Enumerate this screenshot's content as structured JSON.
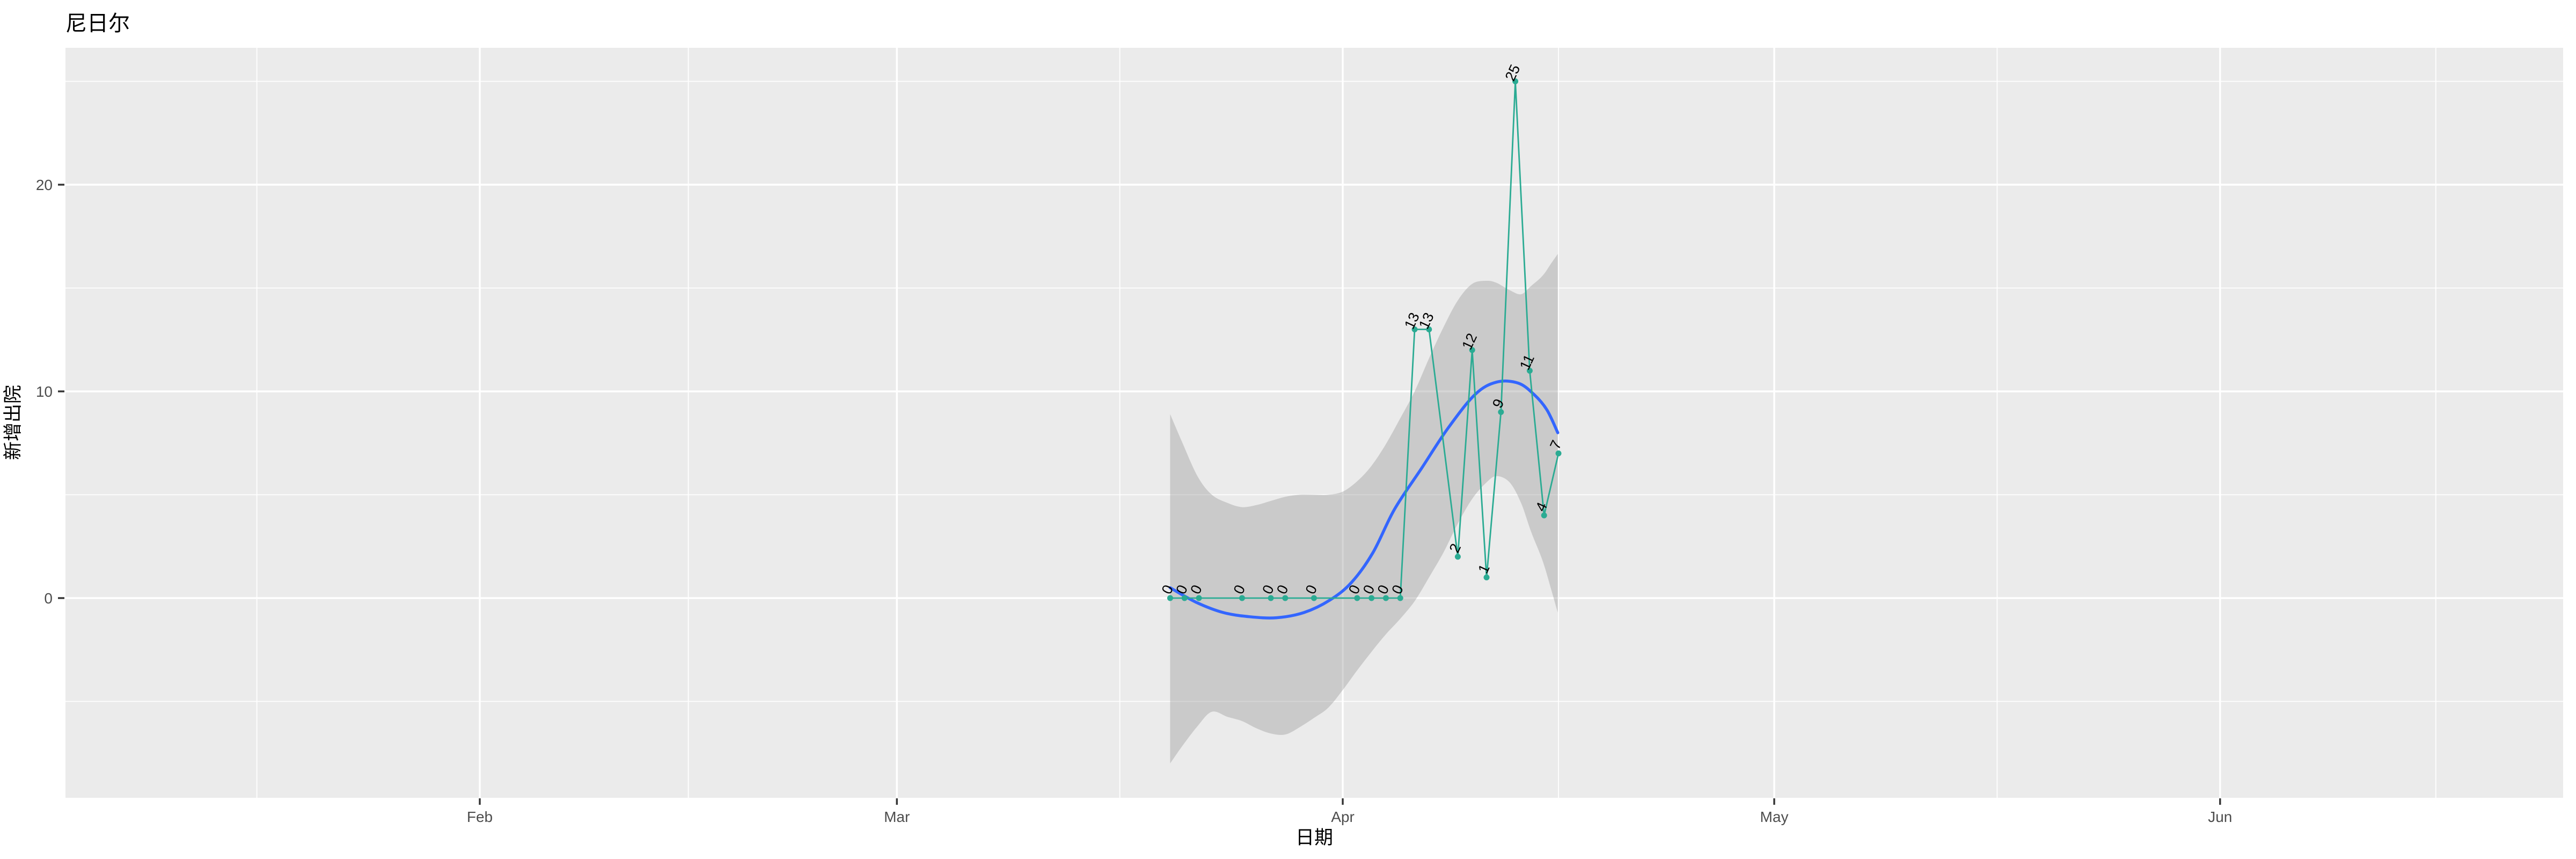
{
  "title": "尼日尔",
  "chart_data": {
    "type": "line",
    "title": "尼日尔",
    "xlabel": "日期",
    "ylabel": "新增出院",
    "x_ticks": [
      {
        "label": "Feb",
        "date": "2020-02-01"
      },
      {
        "label": "Mar",
        "date": "2020-03-01"
      },
      {
        "label": "Apr",
        "date": "2020-04-01"
      },
      {
        "label": "May",
        "date": "2020-05-01"
      },
      {
        "label": "Jun",
        "date": "2020-06-01"
      }
    ],
    "x_minor_months": [
      "2020-01-01",
      "2020-02-01",
      "2020-03-01",
      "2020-04-01",
      "2020-05-01",
      "2020-06-01",
      "2020-07-01"
    ],
    "y_ticks": [
      0,
      10,
      20
    ],
    "y_minor_ticks": [
      -5,
      5,
      15,
      25
    ],
    "ylim": [
      -9.7,
      26.6
    ],
    "x_range_dates": [
      "2020-01-03",
      "2020-06-25"
    ],
    "grid": true,
    "legend": false,
    "point_labels_shown": true,
    "series": [
      {
        "name": "新增出院",
        "points": [
          [
            "2020-03-20",
            0
          ],
          [
            "2020-03-21",
            0
          ],
          [
            "2020-03-22",
            0
          ],
          [
            "2020-03-25",
            0
          ],
          [
            "2020-03-27",
            0
          ],
          [
            "2020-03-28",
            0
          ],
          [
            "2020-03-30",
            0
          ],
          [
            "2020-04-02",
            0
          ],
          [
            "2020-04-03",
            0
          ],
          [
            "2020-04-04",
            0
          ],
          [
            "2020-04-05",
            0
          ],
          [
            "2020-04-06",
            13
          ],
          [
            "2020-04-07",
            13
          ],
          [
            "2020-04-09",
            2
          ],
          [
            "2020-04-10",
            12
          ],
          [
            "2020-04-11",
            1
          ],
          [
            "2020-04-12",
            9
          ],
          [
            "2020-04-13",
            25
          ],
          [
            "2020-04-14",
            11
          ],
          [
            "2020-04-15",
            4
          ],
          [
            "2020-04-16",
            7
          ]
        ]
      }
    ],
    "smooth_trend": {
      "note": "loess smooth, day offsets from 2020-04-01 vs value",
      "points": [
        [
          -12,
          0.5
        ],
        [
          -10.2,
          -0.2
        ],
        [
          -8.3,
          -0.7
        ],
        [
          -6.5,
          -0.9
        ],
        [
          -4.6,
          -0.95
        ],
        [
          -2.7,
          -0.7
        ],
        [
          -0.9,
          -0.1
        ],
        [
          0.6,
          0.75
        ],
        [
          2.1,
          2.2
        ],
        [
          3.6,
          4.3
        ],
        [
          5.5,
          6.3
        ],
        [
          7.3,
          8.2
        ],
        [
          9.2,
          9.85
        ],
        [
          10.7,
          10.45
        ],
        [
          12.2,
          10.4
        ],
        [
          13.3,
          9.85
        ],
        [
          14.2,
          9.1
        ],
        [
          14.95,
          8.0
        ]
      ]
    },
    "confidence_band": {
      "note": "day offset from 2020-04-01, upper value, lower value",
      "points": [
        [
          -12,
          8.9,
          -8.0
        ],
        [
          -11.2,
          7.6,
          -7.2
        ],
        [
          -10.1,
          5.9,
          -6.2
        ],
        [
          -9.1,
          5.0,
          -5.5
        ],
        [
          -8,
          4.6,
          -5.75
        ],
        [
          -7,
          4.4,
          -5.95
        ],
        [
          -6,
          4.5,
          -6.3
        ],
        [
          -5,
          4.7,
          -6.55
        ],
        [
          -4,
          4.9,
          -6.6
        ],
        [
          -3,
          5.0,
          -6.25
        ],
        [
          -2,
          5.0,
          -5.8
        ],
        [
          -1,
          5.0,
          -5.3
        ],
        [
          0,
          5.15,
          -4.45
        ],
        [
          1,
          5.65,
          -3.5
        ],
        [
          2,
          6.4,
          -2.6
        ],
        [
          3,
          7.45,
          -1.75
        ],
        [
          4,
          8.7,
          -1.0
        ],
        [
          5,
          10.0,
          -0.15
        ],
        [
          6,
          11.6,
          1.0
        ],
        [
          7,
          13.1,
          2.2
        ],
        [
          8,
          14.4,
          3.6
        ],
        [
          9,
          15.2,
          4.8
        ],
        [
          10,
          15.35,
          5.6
        ],
        [
          10.7,
          15.25,
          5.9
        ],
        [
          11.6,
          14.9,
          5.6
        ],
        [
          12.4,
          14.7,
          4.6
        ],
        [
          13.1,
          15.1,
          3.2
        ],
        [
          13.9,
          15.6,
          1.8
        ],
        [
          14.5,
          16.2,
          0.4
        ],
        [
          14.95,
          16.65,
          -0.7
        ]
      ]
    },
    "colors": {
      "line": "#2bab93",
      "points": "#2bab93",
      "smooth_line": "#3366ff",
      "band_fill": "#999999",
      "band_opacity": 0.4,
      "panel_background": "#ebebeb",
      "gridlines": "#ffffff",
      "tick_text": "#4d4d4d",
      "tick_marks": "#333333",
      "label_text": "#000000"
    }
  }
}
